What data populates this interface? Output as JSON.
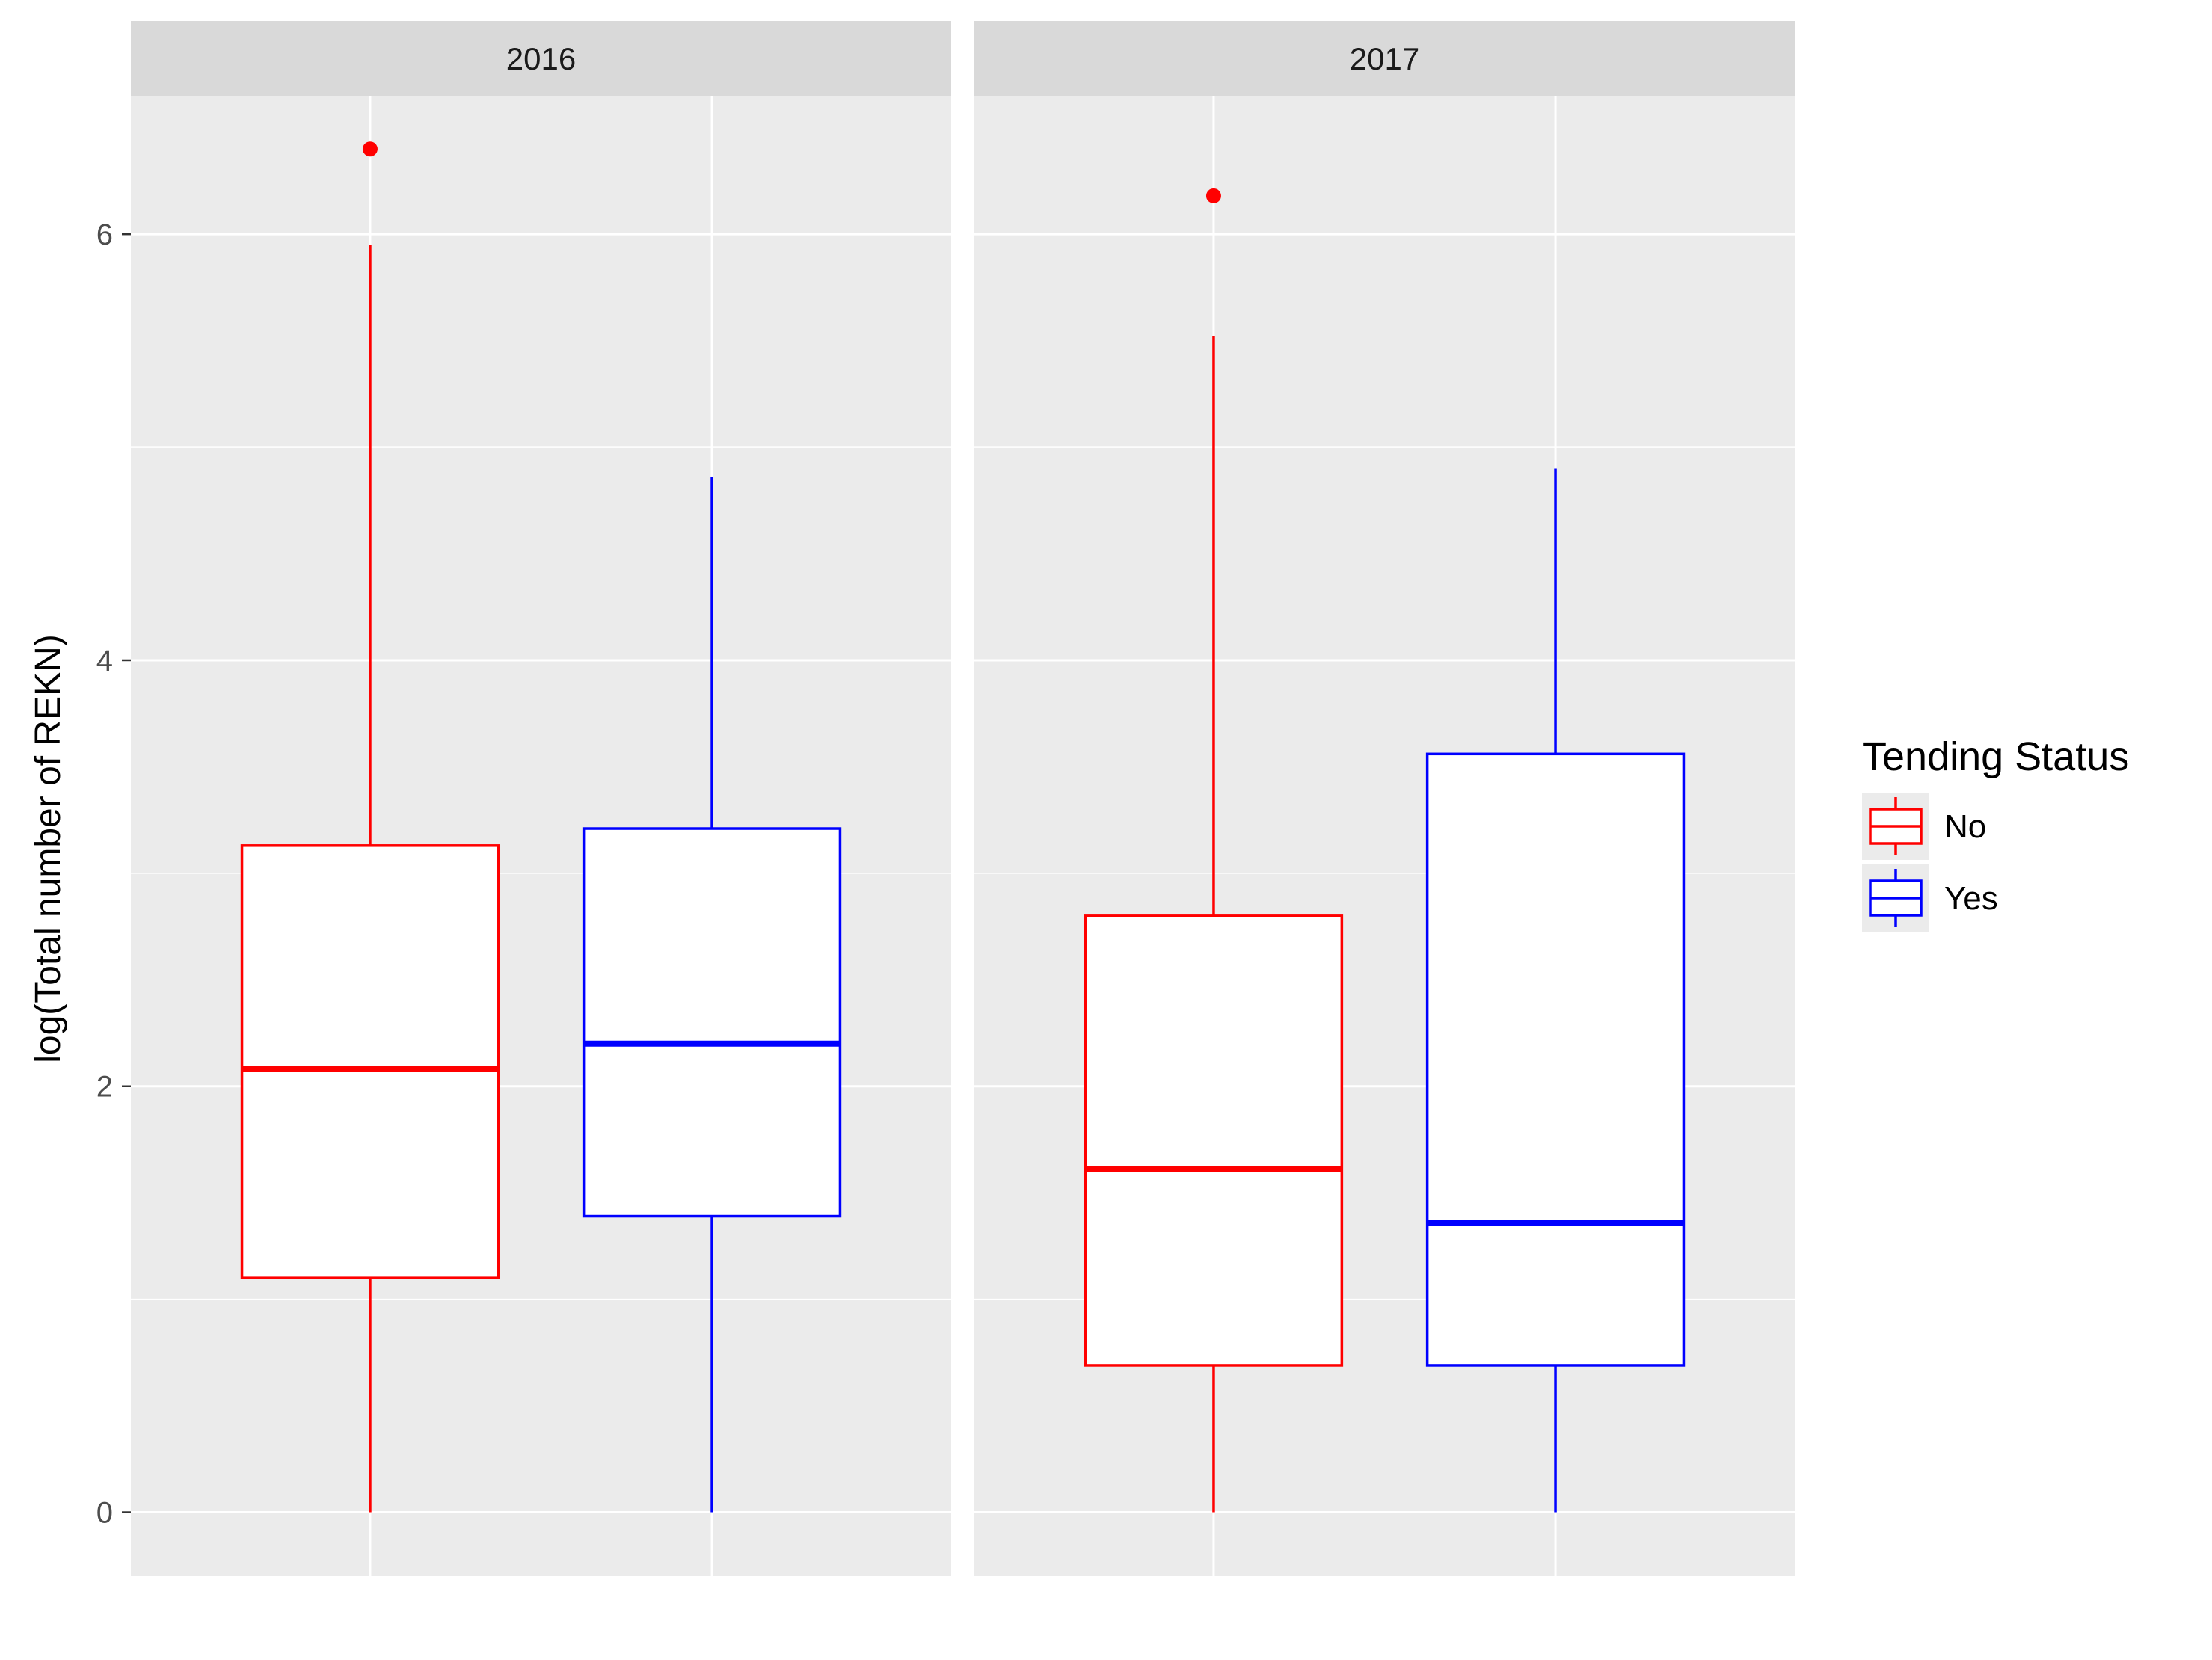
{
  "chart_data": {
    "type": "boxplot",
    "ylabel": "log(Total number of REKN)",
    "xlabel": "",
    "ylim": [
      -0.3,
      6.65
    ],
    "yticks": [
      0,
      2,
      4,
      6
    ],
    "ytick_labels": [
      "0",
      "2",
      "4",
      "6"
    ],
    "grid": true,
    "facets": [
      {
        "label": "2016",
        "boxes": [
          {
            "group": "No",
            "min": 0,
            "q1": 1.1,
            "median": 2.08,
            "q3": 3.13,
            "max": 5.95,
            "outliers": [
              6.4
            ]
          },
          {
            "group": "Yes",
            "min": 0,
            "q1": 1.39,
            "median": 2.2,
            "q3": 3.21,
            "max": 4.86,
            "outliers": []
          }
        ]
      },
      {
        "label": "2017",
        "boxes": [
          {
            "group": "No",
            "min": 0,
            "q1": 0.69,
            "median": 1.61,
            "q3": 2.8,
            "max": 5.52,
            "outliers": [
              6.18
            ]
          },
          {
            "group": "Yes",
            "min": 0,
            "q1": 0.69,
            "median": 1.36,
            "q3": 3.56,
            "max": 4.9,
            "outliers": []
          }
        ]
      }
    ],
    "legend": {
      "title": "Tending Status",
      "position": "right",
      "entries": [
        {
          "label": "No",
          "color": "#ff0000"
        },
        {
          "label": "Yes",
          "color": "#0000ff"
        }
      ]
    },
    "colors": {
      "panel_bg": "#ebebeb",
      "strip_bg": "#d9d9d9",
      "grid": "#ffffff",
      "box_fill": "#ffffff"
    }
  }
}
